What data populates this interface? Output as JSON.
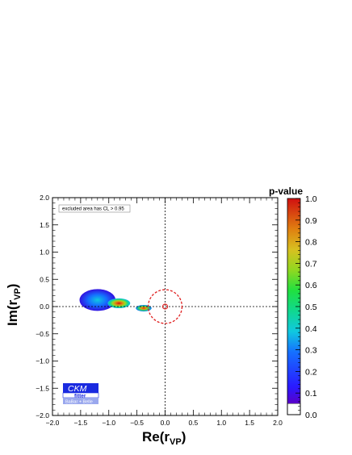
{
  "chart_data": {
    "type": "heatmap",
    "xlabel": "Re(r",
    "xlabel_sub": "VP",
    "xlabel_close": ")",
    "ylabel": "Im(r",
    "ylabel_sub": "VP",
    "ylabel_close": ")",
    "xlim": [
      -2.0,
      2.0
    ],
    "ylim": [
      -2.0,
      2.0
    ],
    "x_ticks": [
      "−2.0",
      "−1.5",
      "−1.0",
      "−0.5",
      "0.0",
      "0.5",
      "1.0",
      "1.5",
      "2.0"
    ],
    "y_ticks": [
      "−2.0",
      "−1.5",
      "−1.0",
      "−0.5",
      "0.0",
      "0.5",
      "1.0",
      "1.5",
      "2.0"
    ],
    "colorbar": {
      "title": "p-value",
      "range": [
        0.0,
        1.0
      ],
      "ticks": [
        "0.0",
        "0.1",
        "0.2",
        "0.3",
        "0.4",
        "0.5",
        "0.6",
        "0.7",
        "0.8",
        "0.9",
        "1.0"
      ]
    },
    "annotation": "excluded area has CL > 0.95",
    "reference_lines": {
      "x": 0.0,
      "y": 0.0
    },
    "reference_circle": {
      "center": [
        0.0,
        0.0
      ],
      "radius": 0.3,
      "color": "#e02020"
    },
    "regions": [
      {
        "center": [
          -1.2,
          0.12
        ],
        "rx": 0.32,
        "ry": 0.2,
        "p_peak": 0.35
      },
      {
        "center": [
          -0.82,
          0.06
        ],
        "rx": 0.2,
        "ry": 0.09,
        "p_peak": 1.0
      },
      {
        "center": [
          -0.38,
          -0.03
        ],
        "rx": 0.14,
        "ry": 0.06,
        "p_peak": 0.95
      }
    ]
  },
  "logo": {
    "main": "CKM",
    "sub": "fitter",
    "tag": "BaBar + Belle"
  }
}
